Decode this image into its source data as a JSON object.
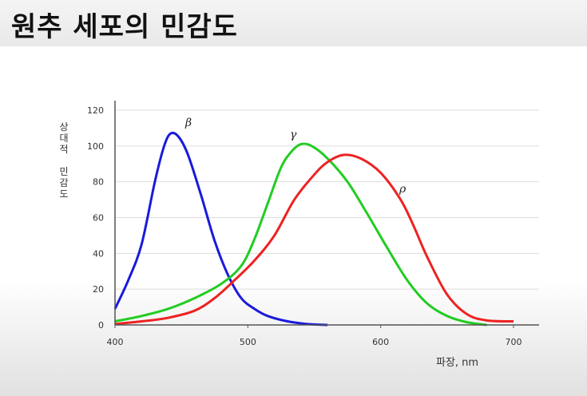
{
  "header": {
    "title": "원추 세포의 민감도"
  },
  "chart_data": {
    "type": "line",
    "title": "원추 세포의 민감도",
    "xlabel": "파장, nm",
    "ylabel": "상대적 민감도",
    "xlim": [
      400,
      700
    ],
    "ylim": [
      0,
      120
    ],
    "x_ticks": [
      400,
      500,
      600,
      700
    ],
    "y_ticks": [
      0,
      20,
      40,
      60,
      80,
      100,
      120
    ],
    "grid": "horizontal",
    "series": [
      {
        "name": "β",
        "color": "#1a1adc",
        "points": [
          [
            400,
            9
          ],
          [
            410,
            25
          ],
          [
            420,
            45
          ],
          [
            430,
            80
          ],
          [
            437,
            100
          ],
          [
            442,
            107
          ],
          [
            448,
            105
          ],
          [
            455,
            95
          ],
          [
            465,
            72
          ],
          [
            475,
            47
          ],
          [
            485,
            28
          ],
          [
            495,
            15
          ],
          [
            505,
            9
          ],
          [
            515,
            5
          ],
          [
            530,
            2
          ],
          [
            545,
            0.5
          ],
          [
            560,
            0
          ]
        ]
      },
      {
        "name": "γ",
        "color": "#22cc22",
        "points": [
          [
            400,
            2
          ],
          [
            420,
            5
          ],
          [
            440,
            9
          ],
          [
            460,
            15
          ],
          [
            480,
            23
          ],
          [
            495,
            33
          ],
          [
            505,
            48
          ],
          [
            515,
            68
          ],
          [
            525,
            88
          ],
          [
            533,
            97
          ],
          [
            540,
            101
          ],
          [
            548,
            100
          ],
          [
            560,
            93
          ],
          [
            575,
            80
          ],
          [
            590,
            62
          ],
          [
            605,
            43
          ],
          [
            620,
            25
          ],
          [
            635,
            12
          ],
          [
            650,
            5
          ],
          [
            665,
            1.5
          ],
          [
            680,
            0
          ]
        ]
      },
      {
        "name": "ρ",
        "color": "#ee2222",
        "points": [
          [
            400,
            0.5
          ],
          [
            420,
            2
          ],
          [
            440,
            4
          ],
          [
            460,
            8
          ],
          [
            475,
            15
          ],
          [
            490,
            25
          ],
          [
            505,
            36
          ],
          [
            520,
            50
          ],
          [
            535,
            70
          ],
          [
            550,
            84
          ],
          [
            560,
            91
          ],
          [
            572,
            95
          ],
          [
            585,
            93
          ],
          [
            600,
            85
          ],
          [
            615,
            70
          ],
          [
            625,
            55
          ],
          [
            635,
            38
          ],
          [
            650,
            17
          ],
          [
            665,
            6
          ],
          [
            680,
            2.5
          ],
          [
            700,
            2
          ]
        ]
      }
    ]
  }
}
